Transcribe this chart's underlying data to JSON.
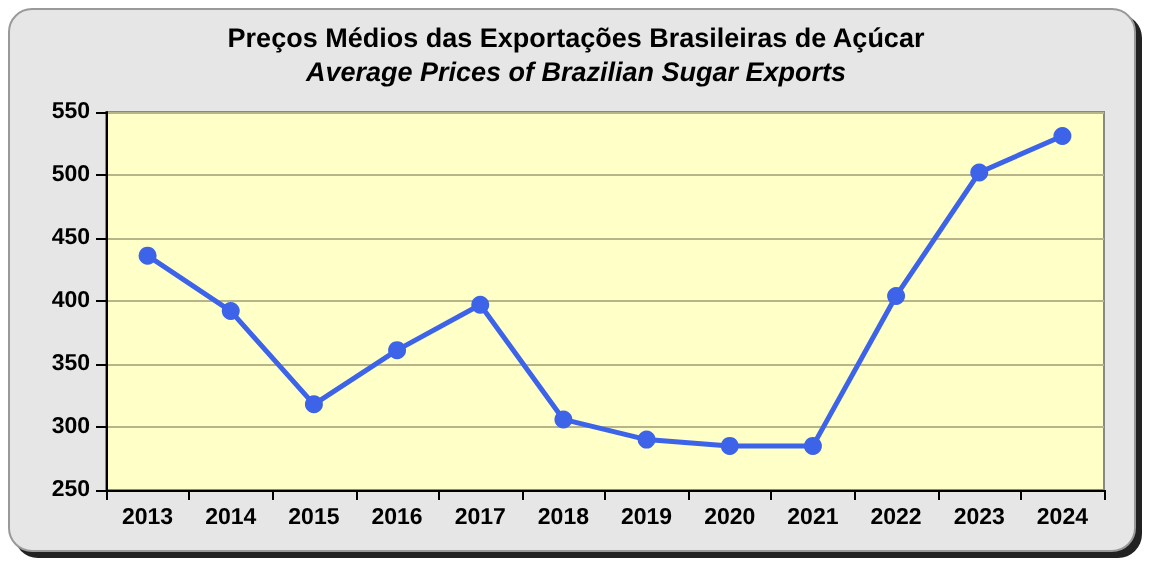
{
  "chart_data": {
    "type": "line",
    "title": "Preços Médios das Exportações Brasileiras de Açúcar",
    "subtitle": "Average Prices of Brazilian Sugar Exports",
    "categories": [
      "2013",
      "2014",
      "2015",
      "2016",
      "2017",
      "2018",
      "2019",
      "2020",
      "2021",
      "2022",
      "2023",
      "2024"
    ],
    "series": [
      {
        "color": "#3d63e8",
        "values": [
          436,
          392,
          318,
          361,
          397,
          306,
          290,
          285,
          285,
          404,
          502,
          531
        ]
      }
    ],
    "ylim": [
      250,
      550
    ],
    "yticks": [
      250,
      300,
      350,
      400,
      450,
      500,
      550
    ],
    "grid": "y",
    "marker": "circle",
    "line_style": "solid"
  }
}
